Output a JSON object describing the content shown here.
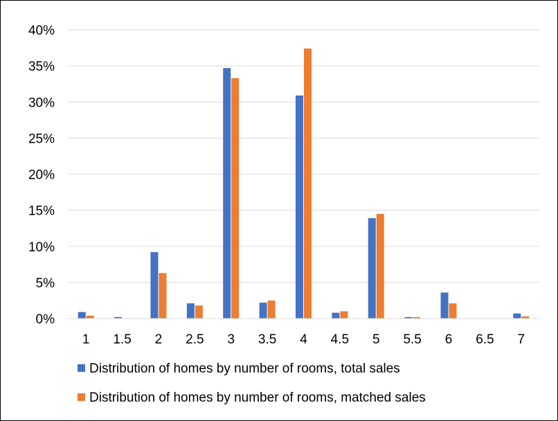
{
  "chart_data": {
    "type": "bar",
    "categories": [
      "1",
      "1.5",
      "2",
      "2.5",
      "3",
      "3.5",
      "4",
      "4.5",
      "5",
      "5.5",
      "6",
      "6.5",
      "7"
    ],
    "series": [
      {
        "name": "Distribution of homes by number of rooms, total sales",
        "color": "#4472C4",
        "values": [
          0.9,
          0.2,
          9.2,
          2.1,
          34.7,
          2.2,
          30.9,
          0.8,
          13.9,
          0.2,
          3.6,
          0.0,
          0.7
        ]
      },
      {
        "name": "Distribution of homes by number of rooms, matched sales",
        "color": "#ED7D31",
        "values": [
          0.4,
          0.0,
          6.3,
          1.8,
          33.3,
          2.5,
          37.4,
          1.0,
          14.5,
          0.2,
          2.1,
          0.0,
          0.3
        ]
      }
    ],
    "ylim": [
      0,
      40
    ],
    "yticks": [
      "0%",
      "5%",
      "10%",
      "15%",
      "20%",
      "25%",
      "30%",
      "35%",
      "40%"
    ],
    "grid": true,
    "legend_position": "bottom"
  }
}
